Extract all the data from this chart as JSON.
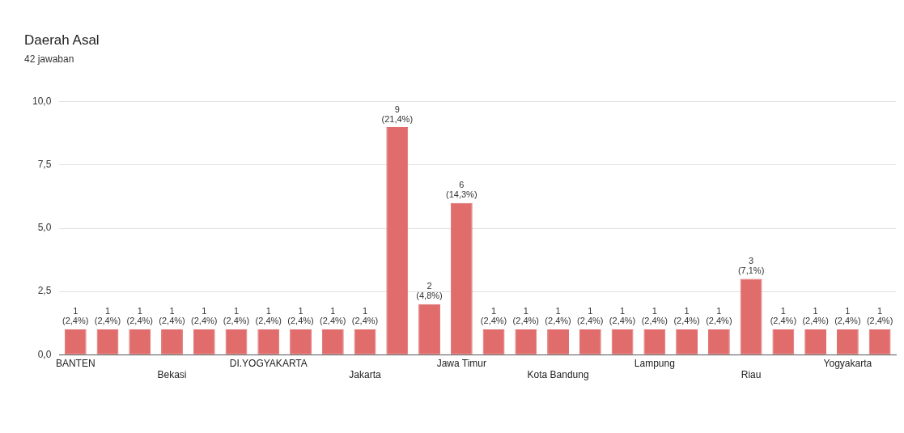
{
  "chart_data": {
    "type": "bar",
    "title": "Daerah Asal",
    "subtitle": "42 jawaban",
    "categories": [
      "BANTEN",
      null,
      null,
      "Bekasi",
      null,
      null,
      "DI.YOGYAKARTA",
      null,
      null,
      "Jakarta",
      null,
      null,
      "Jawa Timur",
      null,
      null,
      "Kota Bandung",
      null,
      null,
      "Lampung",
      null,
      null,
      "Riau",
      null,
      null,
      "Yogyakarta",
      null
    ],
    "values": [
      1,
      1,
      1,
      1,
      1,
      1,
      1,
      1,
      1,
      1,
      9,
      2,
      6,
      1,
      1,
      1,
      1,
      1,
      1,
      1,
      1,
      3,
      1,
      1,
      1,
      1
    ],
    "value_labels": [
      "1 (2,4%)",
      "1 (2,4%)",
      "1 (2,4%)",
      "1 (2,4%)",
      "1 (2,4%)",
      "1 (2,4%)",
      "1 (2,4%)",
      "1 (2,4%)",
      "1 (2,4%)",
      "1 (2,4%)",
      "9 (21,4%)",
      "2 (4,8%)",
      "6 (14,3%)",
      "1 (2,4%)",
      "1 (2,4%)",
      "1 (2,4%)",
      "1 (2,4%)",
      "1 (2,4%)",
      "1 (2,4%)",
      "1 (2,4%)",
      "1 (2,4%)",
      "3 (7,1%)",
      "1 (2,4%)",
      "1 (2,4%)",
      "1 (2,4%)",
      "1 (2,4%)"
    ],
    "color": "#e06c6c",
    "ylim": [
      0,
      10
    ],
    "yticks": [
      {
        "value": 0,
        "label": "0,0"
      },
      {
        "value": 2.5,
        "label": "2,5"
      },
      {
        "value": 5,
        "label": "5,0"
      },
      {
        "value": 7.5,
        "label": "7,5"
      },
      {
        "value": 10,
        "label": "10,0"
      }
    ],
    "grid": "y"
  }
}
